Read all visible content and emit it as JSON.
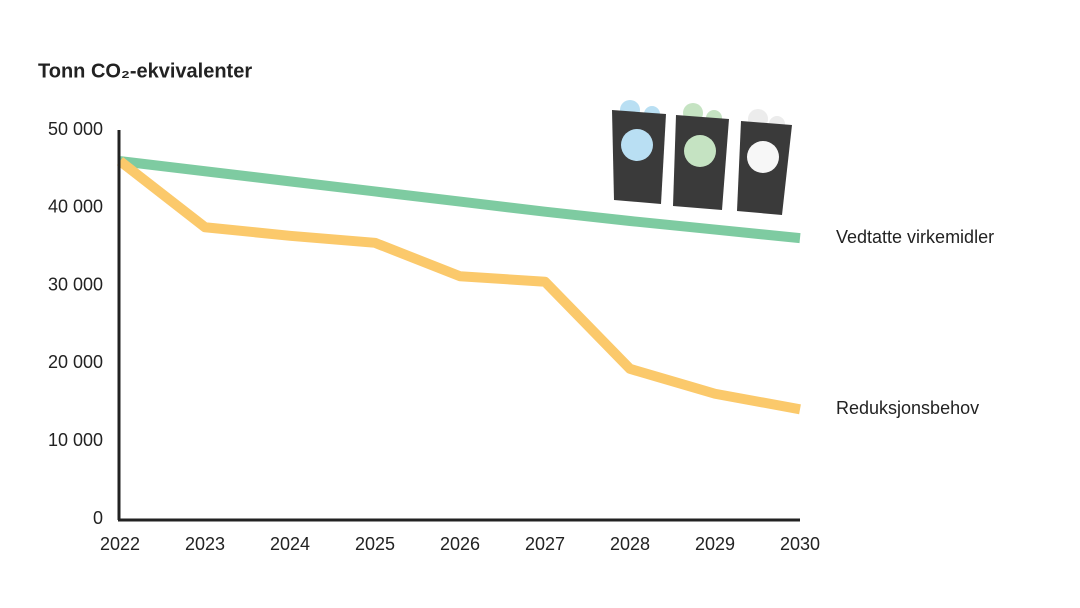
{
  "chart_data": {
    "type": "line",
    "title": "Tonn CO₂-ekvivalenter",
    "categories": [
      "2022",
      "2023",
      "2024",
      "2025",
      "2026",
      "2027",
      "2028",
      "2029",
      "2030"
    ],
    "series": [
      {
        "name": "Vedtatte virkemidler",
        "color": "#7ecba1",
        "values": [
          46000,
          44700,
          43400,
          42100,
          40800,
          39500,
          38300,
          37200,
          36100
        ]
      },
      {
        "name": "Reduksjonsbehov",
        "color": "#fbc96b",
        "values": [
          46000,
          37500,
          36400,
          35500,
          31200,
          30500,
          19300,
          16100,
          14100
        ]
      }
    ],
    "ylim": [
      0,
      50000
    ],
    "yticks": [
      0,
      {
        "value": 10000,
        "label": "10 000"
      },
      {
        "value": 20000,
        "label": "20 000"
      },
      {
        "value": 30000,
        "label": "30 000"
      },
      {
        "value": 40000,
        "label": "40 000"
      },
      {
        "value": 50000,
        "label": "50 000"
      }
    ],
    "grid": false
  }
}
